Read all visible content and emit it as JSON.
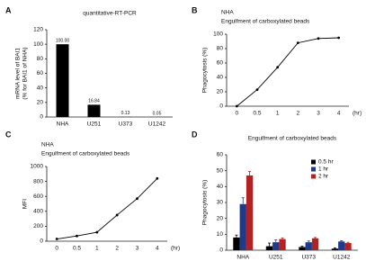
{
  "chart_data": [
    {
      "type": "bar",
      "panel": "A",
      "title": "quantitative-RT-PCR",
      "ylabel": [
        "mRNA level of BAI1",
        "(% for BAI1 of NHA)"
      ],
      "categories": [
        "NHA",
        "U251",
        "U373",
        "U1242"
      ],
      "values": [
        100,
        16.84,
        0.13,
        0.05
      ],
      "value_labels": [
        "100.00",
        "16.84",
        "0.13",
        "0.05"
      ],
      "color": "#000000",
      "ylim": [
        0,
        120
      ],
      "yticks": [
        0,
        20,
        40,
        60,
        80,
        100,
        120
      ]
    },
    {
      "type": "line",
      "panel": "B",
      "title": "NHA",
      "subtitle": "Engulfment of carboxylated beads",
      "ylabel": [
        "Phagocytosis (%)"
      ],
      "xlabel": "(hr)",
      "categories": [
        "0",
        "0.5",
        "1",
        "2",
        "3",
        "4"
      ],
      "values": [
        0,
        23,
        54,
        88,
        94,
        95
      ],
      "color": "#000000",
      "ylim": [
        0,
        100
      ],
      "yticks": [
        0,
        20,
        40,
        60,
        80,
        100
      ]
    },
    {
      "type": "line",
      "panel": "C",
      "title": "NHA",
      "subtitle": "Engulfment of carboxylated beads",
      "ylabel": [
        "MFI"
      ],
      "xlabel": "(hr)",
      "categories": [
        "0",
        "0.5",
        "1",
        "2",
        "3",
        "4"
      ],
      "values": [
        30,
        70,
        120,
        350,
        570,
        840
      ],
      "color": "#000000",
      "ylim": [
        0,
        1000
      ],
      "yticks": [
        0,
        200,
        400,
        600,
        800,
        1000
      ]
    },
    {
      "type": "grouped-bar",
      "panel": "D",
      "title": "Engulfment of carboxylated beads",
      "ylabel": [
        "Phagocytosis (%)"
      ],
      "categories": [
        "NHA",
        "U251",
        "U373",
        "U1242"
      ],
      "series": [
        {
          "name": "0.5 hr",
          "color": "#000000",
          "values": [
            8,
            2.5,
            2,
            1
          ],
          "errors": [
            1.5,
            2,
            0.5,
            0.5
          ]
        },
        {
          "name": "1 hr",
          "color": "#1f3a8a",
          "values": [
            29,
            5,
            5,
            5.5
          ],
          "errors": [
            4,
            1.5,
            0.8,
            0.5
          ]
        },
        {
          "name": "2 hr",
          "color": "#b22222",
          "values": [
            47,
            7,
            7.5,
            4.5
          ],
          "errors": [
            2.5,
            0.7,
            0.5,
            0.5
          ]
        }
      ],
      "legend": "top-right",
      "ylim": [
        0,
        60
      ],
      "yticks": [
        0,
        10,
        20,
        30,
        40,
        50,
        60
      ]
    }
  ]
}
